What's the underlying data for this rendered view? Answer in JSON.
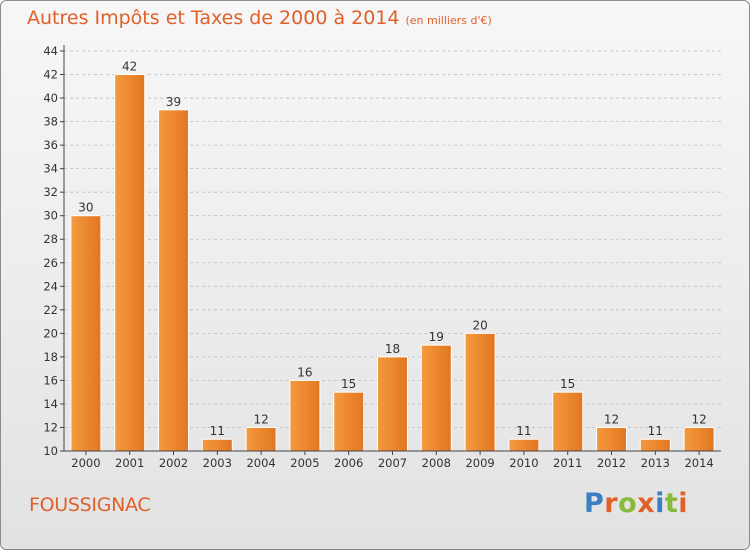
{
  "header": {
    "title": "Autres Impôts et Taxes de 2000 à 2014",
    "unit": "(en milliers d'€)"
  },
  "footer": {
    "commune": "FOUSSIGNAC",
    "logo_letters": [
      {
        "char": "P",
        "color": "#3a7fc3"
      },
      {
        "char": "r",
        "color": "#e0602a"
      },
      {
        "char": "o",
        "color": "#89b93a"
      },
      {
        "char": "x",
        "color": "#e0602a"
      },
      {
        "char": "i",
        "color": "#3a7fc3"
      },
      {
        "char": "t",
        "color": "#89b93a"
      },
      {
        "char": "i",
        "color": "#e0602a"
      }
    ]
  },
  "colors": {
    "bar": "#f08a2f",
    "bar_light": "#f7a852",
    "bar_dark": "#de6e1f",
    "accent": "#e0602a",
    "grid": "#bcbcbc"
  },
  "chart_data": {
    "type": "bar",
    "title": "Autres Impôts et Taxes de 2000 à 2014",
    "categories": [
      "2000",
      "2001",
      "2002",
      "2003",
      "2004",
      "2005",
      "2006",
      "2007",
      "2008",
      "2009",
      "2010",
      "2011",
      "2012",
      "2013",
      "2014"
    ],
    "values": [
      30,
      42,
      39,
      11,
      12,
      16,
      15,
      18,
      19,
      20,
      11,
      15,
      12,
      11,
      12
    ],
    "ylim": [
      10,
      44
    ],
    "yticks": [
      10,
      12,
      14,
      16,
      18,
      20,
      22,
      24,
      26,
      28,
      30,
      32,
      34,
      36,
      38,
      40,
      42,
      44
    ],
    "grid": "dashed horizontal",
    "data_labels": true
  }
}
